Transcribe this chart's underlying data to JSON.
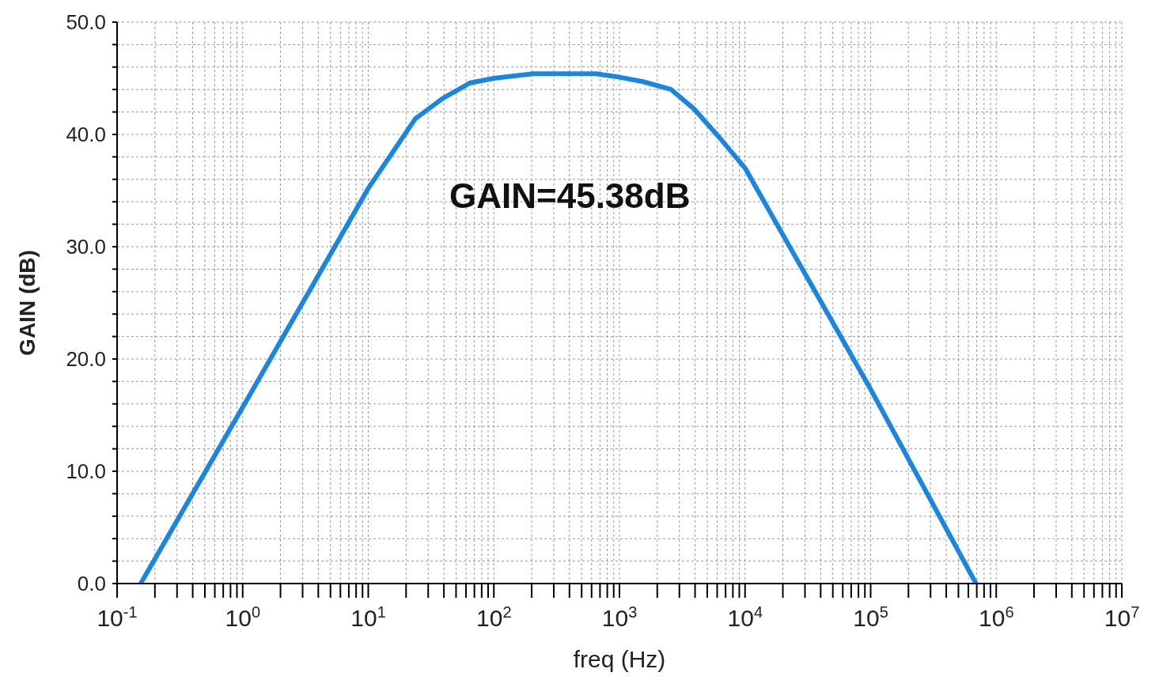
{
  "chart_data": {
    "type": "line",
    "xlabel": "freq (Hz)",
    "ylabel": "GAIN (dB)",
    "log": "x",
    "grid": true,
    "line_style": "solid",
    "annotations": [
      "GAIN=45.38dB"
    ],
    "xlim": [
      0.1,
      10000000
    ],
    "ylim": [
      0,
      50
    ],
    "xticks": [
      {
        "value": 0.1,
        "label": "10$^{-1}$"
      },
      {
        "value": 0.2,
        "label": null
      },
      {
        "value": 0.3,
        "label": null
      },
      {
        "value": 0.4,
        "label": null
      },
      {
        "value": 0.5,
        "label": null
      },
      {
        "value": 0.6,
        "label": null
      },
      {
        "value": 0.7,
        "label": null
      },
      {
        "value": 0.8,
        "label": null
      },
      {
        "value": 0.9,
        "label": null
      },
      {
        "value": 1,
        "label": "10$^{0}$"
      },
      {
        "value": 2,
        "label": null
      },
      {
        "value": 3,
        "label": null
      },
      {
        "value": 4,
        "label": null
      },
      {
        "value": 5,
        "label": null
      },
      {
        "value": 6,
        "label": null
      },
      {
        "value": 7,
        "label": null
      },
      {
        "value": 8,
        "label": null
      },
      {
        "value": 9,
        "label": null
      },
      {
        "value": 10,
        "label": "10$^{1}$"
      },
      {
        "value": 20,
        "label": null
      },
      {
        "value": 30,
        "label": null
      },
      {
        "value": 40,
        "label": null
      },
      {
        "value": 50,
        "label": null
      },
      {
        "value": 60,
        "label": null
      },
      {
        "value": 70,
        "label": null
      },
      {
        "value": 80,
        "label": null
      },
      {
        "value": 90,
        "label": null
      },
      {
        "value": 100,
        "label": "10$^{2}$"
      },
      {
        "value": 200,
        "label": null
      },
      {
        "value": 300,
        "label": null
      },
      {
        "value": 400,
        "label": null
      },
      {
        "value": 500,
        "label": null
      },
      {
        "value": 600,
        "label": null
      },
      {
        "value": 700,
        "label": null
      },
      {
        "value": 800,
        "label": null
      },
      {
        "value": 900,
        "label": null
      },
      {
        "value": 1000,
        "label": "10$^{3}$"
      },
      {
        "value": 2000,
        "label": null
      },
      {
        "value": 3000,
        "label": null
      },
      {
        "value": 4000,
        "label": null
      },
      {
        "value": 5000,
        "label": null
      },
      {
        "value": 6000,
        "label": null
      },
      {
        "value": 7000,
        "label": null
      },
      {
        "value": 8000,
        "label": null
      },
      {
        "value": 9000,
        "label": null
      },
      {
        "value": 10000,
        "label": "10$^{4}$"
      },
      {
        "value": 20000,
        "label": null
      },
      {
        "value": 30000,
        "label": null
      },
      {
        "value": 40000,
        "label": null
      },
      {
        "value": 50000,
        "label": null
      },
      {
        "value": 60000,
        "label": null
      },
      {
        "value": 70000,
        "label": null
      },
      {
        "value": 80000,
        "label": null
      },
      {
        "value": 90000,
        "label": null
      },
      {
        "value": 100000,
        "label": "10$^{5}$"
      },
      {
        "value": 200000,
        "label": null
      },
      {
        "value": 300000,
        "label": null
      },
      {
        "value": 400000,
        "label": null
      },
      {
        "value": 500000,
        "label": null
      },
      {
        "value": 600000,
        "label": null
      },
      {
        "value": 700000,
        "label": null
      },
      {
        "value": 800000,
        "label": null
      },
      {
        "value": 900000,
        "label": null
      },
      {
        "value": 1000000,
        "label": "10$^{6}$"
      },
      {
        "value": 2000000,
        "label": null
      },
      {
        "value": 3000000,
        "label": null
      },
      {
        "value": 4000000,
        "label": null
      },
      {
        "value": 5000000,
        "label": null
      },
      {
        "value": 6000000,
        "label": null
      },
      {
        "value": 7000000,
        "label": null
      },
      {
        "value": 8000000,
        "label": null
      },
      {
        "value": 9000000,
        "label": null
      },
      {
        "value": 10000000,
        "label": "10$^{7}$"
      }
    ],
    "yticks": [
      {
        "value": 0,
        "label": "0.0"
      },
      {
        "value": 2,
        "label": null
      },
      {
        "value": 4,
        "label": null
      },
      {
        "value": 6,
        "label": null
      },
      {
        "value": 8,
        "label": null
      },
      {
        "value": 10,
        "label": "10.0"
      },
      {
        "value": 12,
        "label": null
      },
      {
        "value": 14,
        "label": null
      },
      {
        "value": 16,
        "label": null
      },
      {
        "value": 18,
        "label": null
      },
      {
        "value": 20,
        "label": "20.0"
      },
      {
        "value": 22,
        "label": null
      },
      {
        "value": 24,
        "label": null
      },
      {
        "value": 26,
        "label": null
      },
      {
        "value": 28,
        "label": null
      },
      {
        "value": 30,
        "label": "30.0"
      },
      {
        "value": 32,
        "label": null
      },
      {
        "value": 34,
        "label": null
      },
      {
        "value": 36,
        "label": null
      },
      {
        "value": 38,
        "label": null
      },
      {
        "value": 40,
        "label": "40.0"
      },
      {
        "value": 42,
        "label": null
      },
      {
        "value": 44,
        "label": null
      },
      {
        "value": 46,
        "label": null
      },
      {
        "value": 48,
        "label": null
      },
      {
        "value": 50,
        "label": "50.0"
      }
    ],
    "x": [
      0.154,
      1,
      10,
      23.7,
      39,
      65,
      100,
      205,
      400,
      650,
      1000,
      1540,
      2580,
      3900,
      6500,
      10000,
      100000,
      690000
    ],
    "series": [
      {
        "color": "#1a86e0",
        "values": [
          0,
          15.7,
          35.2,
          41.4,
          43.2,
          44.6,
          45.0,
          45.4,
          45.4,
          45.4,
          45.1,
          44.7,
          44.0,
          42.3,
          39.5,
          37.0,
          17.3,
          0
        ]
      }
    ]
  }
}
